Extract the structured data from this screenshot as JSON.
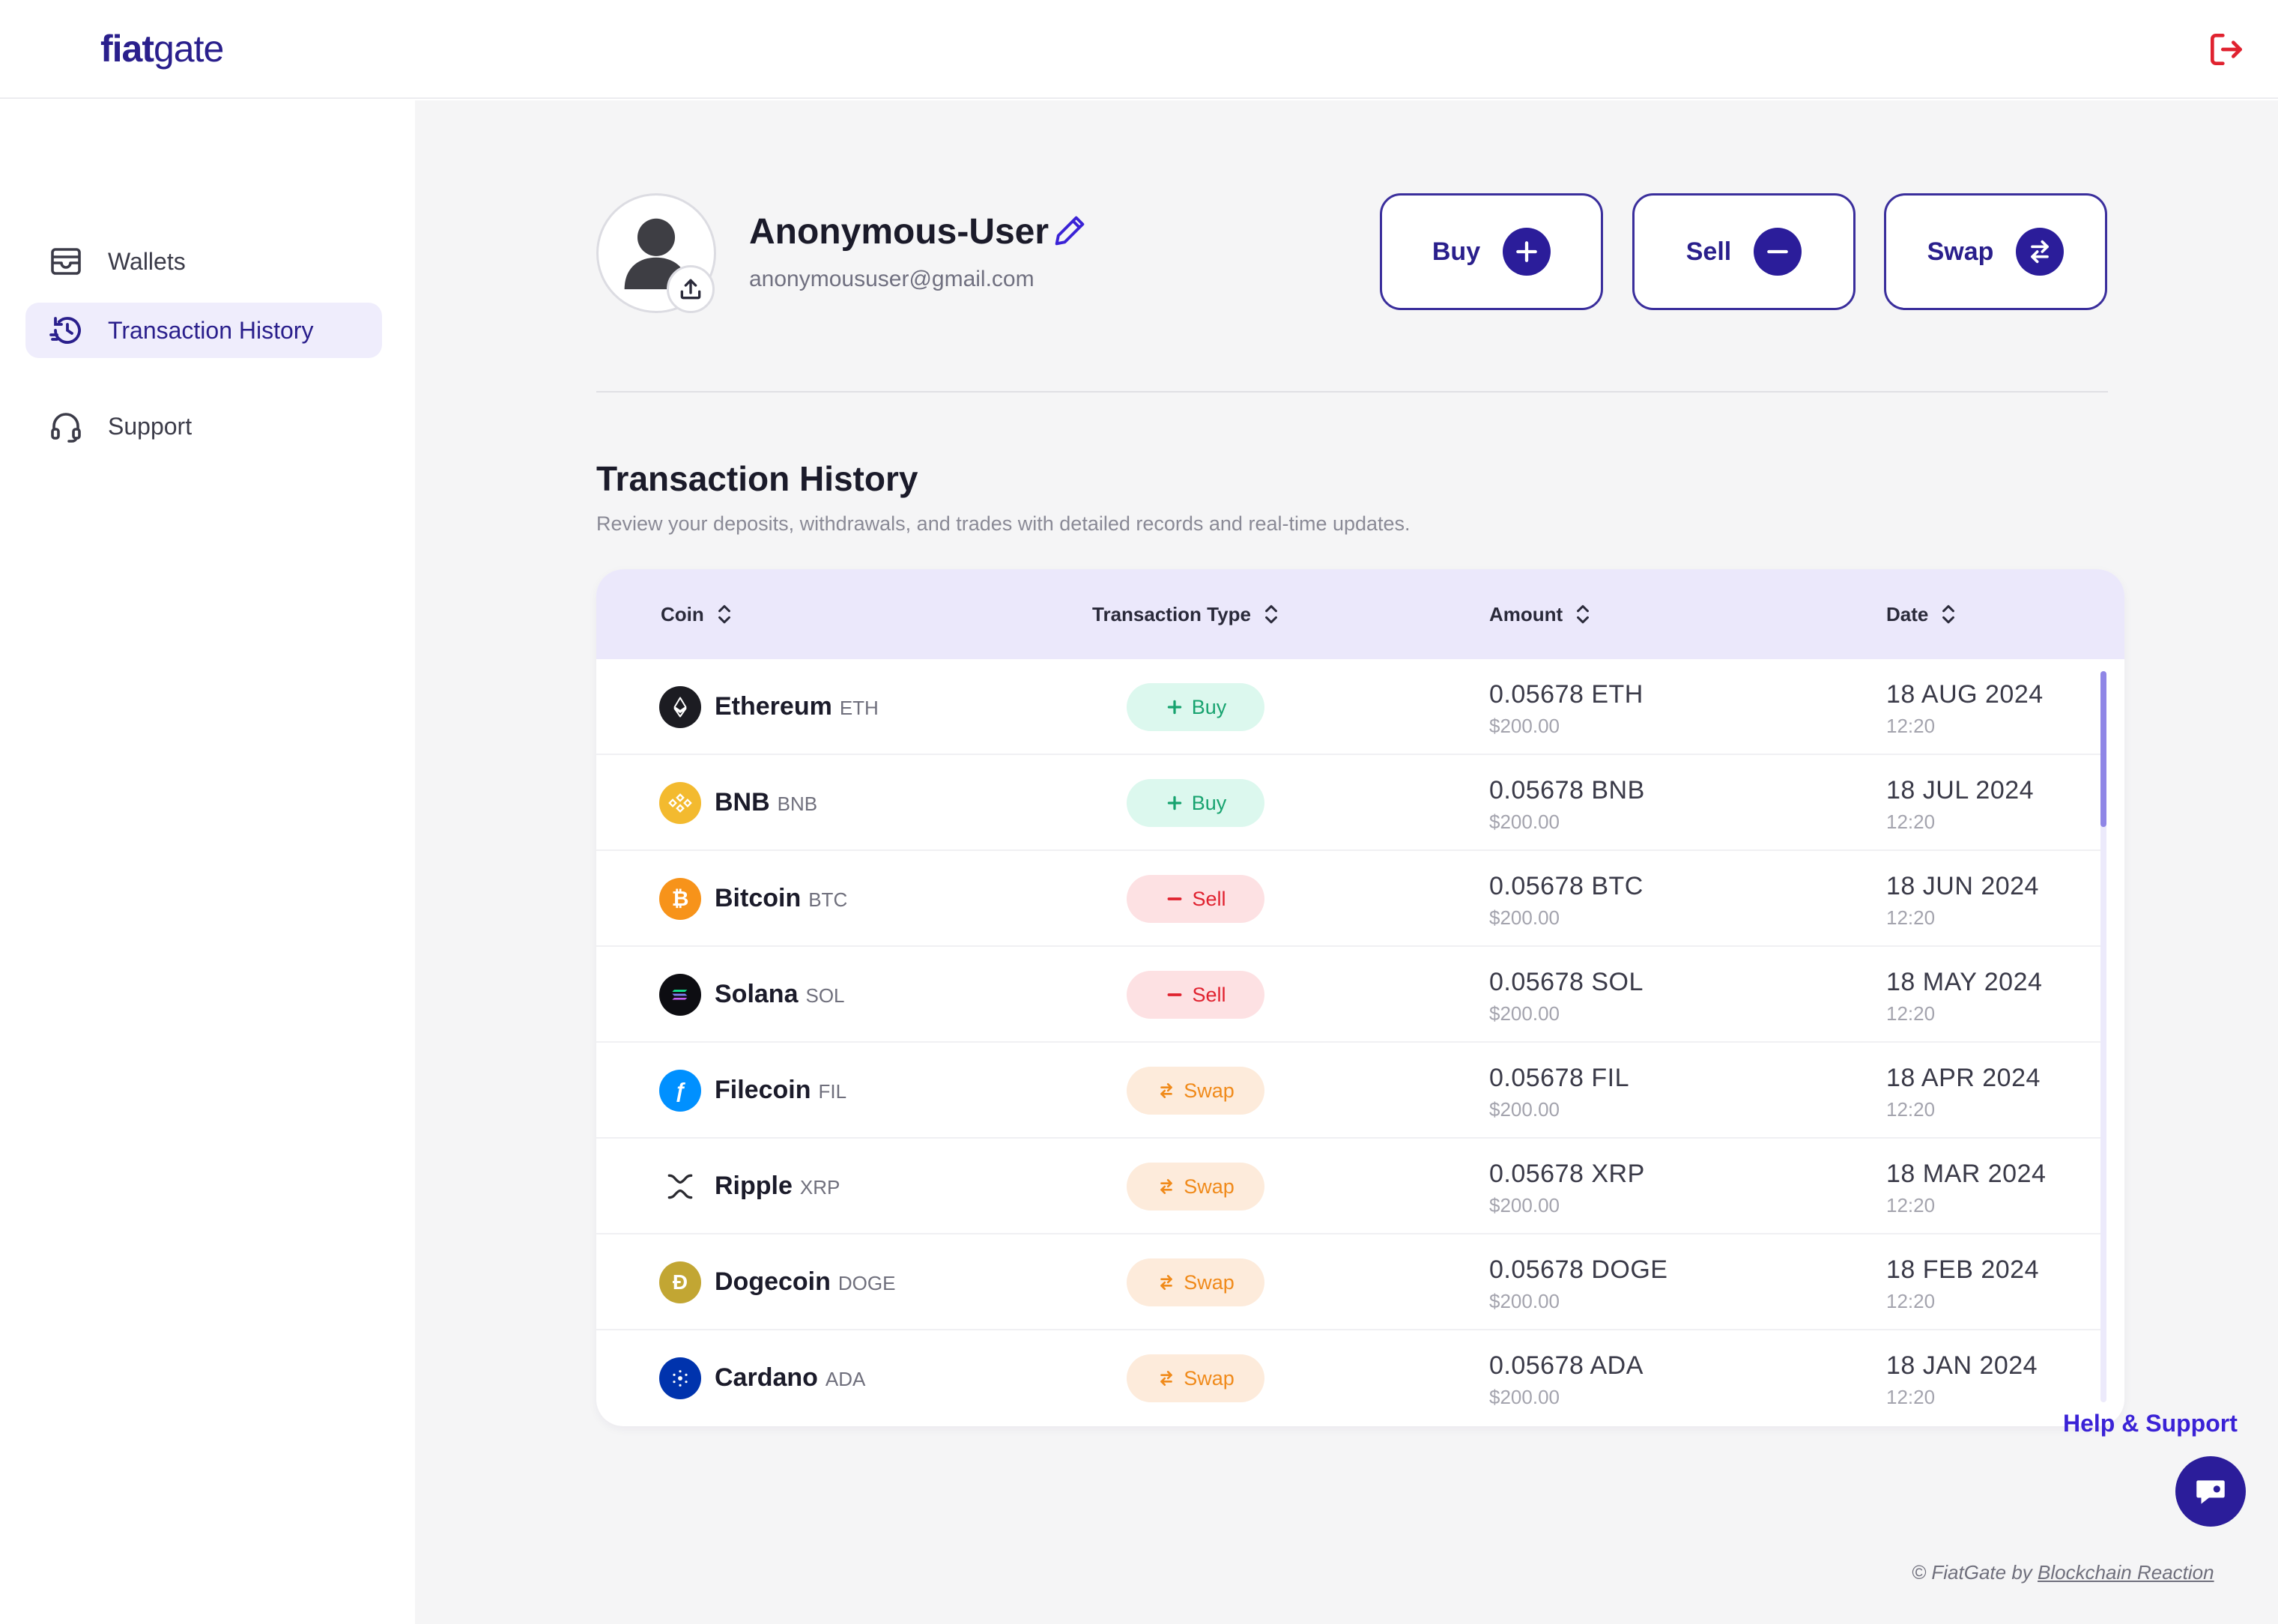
{
  "app": {
    "logo_bold": "fiat",
    "logo_light": "gate"
  },
  "sidebar": {
    "items": [
      {
        "label": "Wallets",
        "icon": "wallet-icon",
        "active": false
      },
      {
        "label": "Transaction History",
        "icon": "history-icon",
        "active": true
      },
      {
        "label": "Support",
        "icon": "headset-icon",
        "active": false
      }
    ]
  },
  "profile": {
    "username": "Anonymous-User",
    "email": "anonymoususer@gmail.com"
  },
  "actions": {
    "buy": "Buy",
    "sell": "Sell",
    "swap": "Swap"
  },
  "section": {
    "title": "Transaction History",
    "subtitle": "Review your deposits, withdrawals, and trades with detailed records and real-time updates."
  },
  "table": {
    "headers": {
      "coin": "Coin",
      "type": "Transaction Type",
      "amount": "Amount",
      "date": "Date"
    },
    "rows": [
      {
        "coin": "Ethereum",
        "symbol": "ETH",
        "type": "Buy",
        "amount": "0.05678 ETH",
        "usd": "$200.00",
        "date": "18 AUG 2024",
        "time": "12:20"
      },
      {
        "coin": "BNB",
        "symbol": "BNB",
        "type": "Buy",
        "amount": "0.05678 BNB",
        "usd": "$200.00",
        "date": "18 JUL 2024",
        "time": "12:20"
      },
      {
        "coin": "Bitcoin",
        "symbol": "BTC",
        "type": "Sell",
        "amount": "0.05678 BTC",
        "usd": "$200.00",
        "date": "18 JUN 2024",
        "time": "12:20"
      },
      {
        "coin": "Solana",
        "symbol": "SOL",
        "type": "Sell",
        "amount": "0.05678 SOL",
        "usd": "$200.00",
        "date": "18 MAY 2024",
        "time": "12:20"
      },
      {
        "coin": "Filecoin",
        "symbol": "FIL",
        "type": "Swap",
        "amount": "0.05678 FIL",
        "usd": "$200.00",
        "date": "18 APR 2024",
        "time": "12:20"
      },
      {
        "coin": "Ripple",
        "symbol": "XRP",
        "type": "Swap",
        "amount": "0.05678 XRP",
        "usd": "$200.00",
        "date": "18 MAR 2024",
        "time": "12:20"
      },
      {
        "coin": "Dogecoin",
        "symbol": "DOGE",
        "type": "Swap",
        "amount": "0.05678 DOGE",
        "usd": "$200.00",
        "date": "18 FEB 2024",
        "time": "12:20"
      },
      {
        "coin": "Cardano",
        "symbol": "ADA",
        "type": "Swap",
        "amount": "0.05678 ADA",
        "usd": "$200.00",
        "date": "18 JAN 2024",
        "time": "12:20"
      }
    ]
  },
  "help": {
    "label": "Help & Support"
  },
  "footer": {
    "prefix": "© FiatGate by",
    "link": "Blockchain Reaction"
  },
  "colors": {
    "brand": "#2b1d9a",
    "buy": "#17a36f",
    "sell": "#e0222f",
    "swap": "#f08a1a",
    "logout": "#e0222f"
  }
}
